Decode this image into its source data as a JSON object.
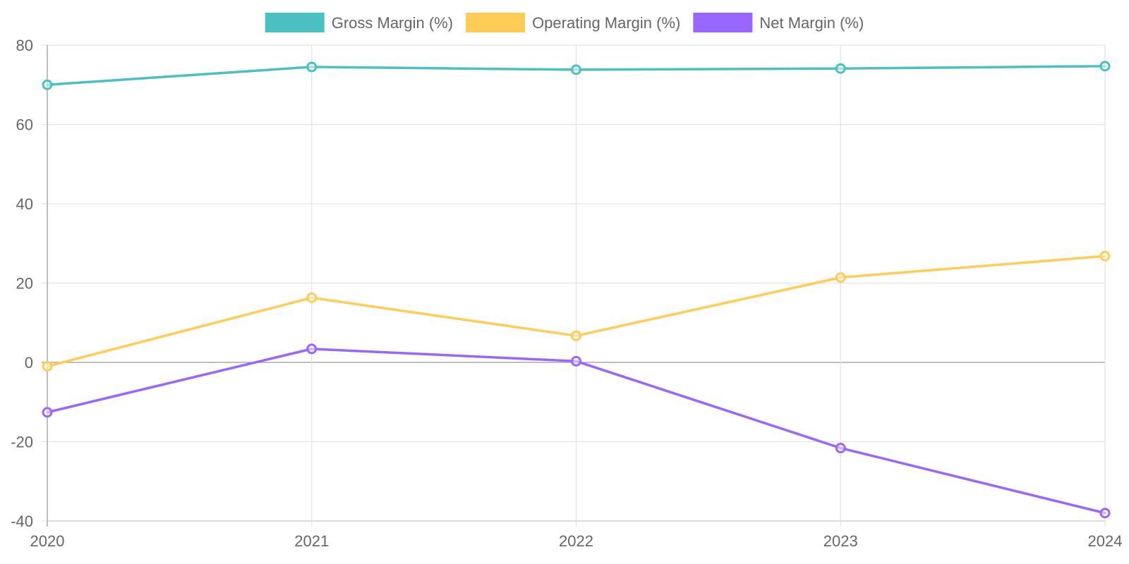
{
  "chart_data": {
    "type": "line",
    "categories": [
      "2020",
      "2021",
      "2022",
      "2023",
      "2024"
    ],
    "series": [
      {
        "name": "Gross Margin (%)",
        "color": "#4bc0c0",
        "values": [
          70.0,
          74.5,
          73.8,
          74.1,
          74.7
        ]
      },
      {
        "name": "Operating Margin (%)",
        "color": "#ffcd56",
        "values": [
          -1.0,
          16.3,
          6.7,
          21.4,
          26.8
        ]
      },
      {
        "name": "Net Margin (%)",
        "color": "#9966ff",
        "values": [
          -12.6,
          3.4,
          0.3,
          -21.6,
          -38.0
        ]
      }
    ],
    "y_ticks": [
      80,
      60,
      40,
      20,
      0,
      -20,
      -40
    ],
    "ylim": [
      -40,
      80
    ],
    "grid": true,
    "legend_position": "top-center",
    "title": "",
    "xlabel": "",
    "ylabel": ""
  }
}
